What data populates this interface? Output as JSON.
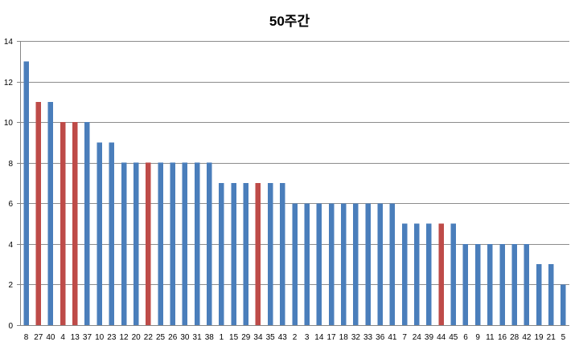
{
  "chart_data": {
    "type": "bar",
    "title": "50주간",
    "xlabel": "",
    "ylabel": "",
    "ylim": [
      0,
      14
    ],
    "ytick_step": 2,
    "grid": true,
    "legend": "none",
    "colors": {
      "default": "#4a7ebb",
      "highlight": "#be4b48"
    },
    "categories": [
      "8",
      "27",
      "40",
      "4",
      "13",
      "37",
      "10",
      "23",
      "12",
      "20",
      "22",
      "25",
      "26",
      "30",
      "31",
      "38",
      "1",
      "15",
      "29",
      "34",
      "35",
      "43",
      "2",
      "3",
      "14",
      "17",
      "18",
      "32",
      "33",
      "36",
      "41",
      "7",
      "24",
      "39",
      "44",
      "45",
      "6",
      "9",
      "11",
      "16",
      "28",
      "42",
      "19",
      "21",
      "5"
    ],
    "values": [
      13,
      11,
      11,
      10,
      10,
      10,
      9,
      9,
      8,
      8,
      8,
      8,
      8,
      8,
      8,
      8,
      7,
      7,
      7,
      7,
      7,
      7,
      6,
      6,
      6,
      6,
      6,
      6,
      6,
      6,
      6,
      5,
      5,
      5,
      5,
      5,
      4,
      4,
      4,
      4,
      4,
      4,
      3,
      3,
      2
    ],
    "highlighted": [
      "27",
      "4",
      "13",
      "22",
      "34",
      "44"
    ]
  }
}
